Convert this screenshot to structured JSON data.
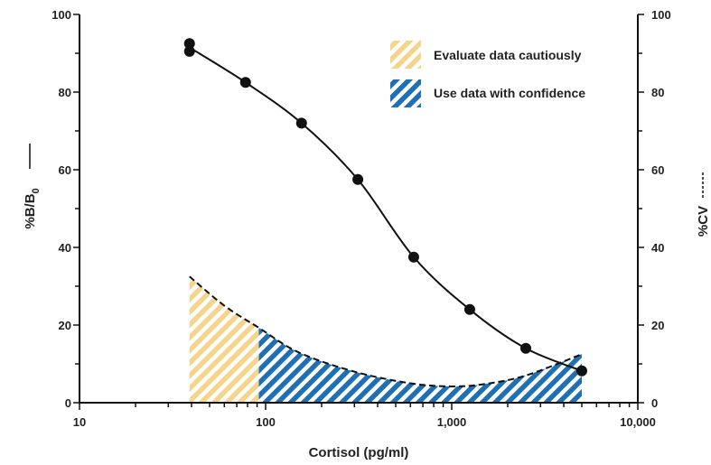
{
  "chart_data": {
    "type": "line",
    "x_scale": "log",
    "xlim": [
      10,
      10000
    ],
    "ylim_left": [
      0,
      100
    ],
    "ylim_right": [
      0,
      100
    ],
    "grid": false,
    "legend_position": "top-right",
    "xlabel": "Cortisol (pg/ml)",
    "ylabel_left": "%B/B",
    "ylabel_left_subscript": "0",
    "ylabel_right": "%CV",
    "x_ticks": [
      10,
      100,
      1000,
      10000
    ],
    "x_tick_labels": [
      "10",
      "100",
      "1,000",
      "10,000"
    ],
    "y_ticks": [
      0,
      20,
      40,
      60,
      80,
      100
    ],
    "y_tick_labels": [
      "0",
      "20",
      "40",
      "60",
      "80",
      "100"
    ],
    "series": [
      {
        "name": "%B/B0",
        "axis": "left",
        "style": "solid line with markers",
        "points": [
          [
            39,
            92.5
          ],
          [
            39,
            90.5
          ],
          [
            78,
            82.5
          ],
          [
            156,
            72
          ],
          [
            313,
            57.5
          ],
          [
            625,
            37.5
          ],
          [
            1250,
            24
          ],
          [
            2500,
            14
          ],
          [
            5000,
            8.2
          ]
        ]
      },
      {
        "name": "%CV",
        "axis": "right",
        "style": "dashed line",
        "points": [
          [
            39,
            32.5
          ],
          [
            60,
            25
          ],
          [
            92,
            19.3
          ],
          [
            150,
            13
          ],
          [
            300,
            8
          ],
          [
            600,
            5
          ],
          [
            1000,
            4.2
          ],
          [
            1500,
            4.8
          ],
          [
            2500,
            7
          ],
          [
            5000,
            12.5
          ]
        ]
      }
    ],
    "regions": [
      {
        "label": "Evaluate data cautiously",
        "x_from": 39,
        "x_to": 92,
        "color": "#F4D58B"
      },
      {
        "label": "Use data with confidence",
        "x_from": 92,
        "x_to": 5000,
        "color": "#1F6FB5"
      }
    ],
    "legend": [
      {
        "label": "Evaluate data cautiously",
        "color": "#F4D58B"
      },
      {
        "label": "Use data with confidence",
        "color": "#1F6FB5"
      }
    ],
    "colors": {
      "curve": "#111111",
      "axis": "#111111",
      "stripe_light": "#FFFFFF"
    }
  }
}
